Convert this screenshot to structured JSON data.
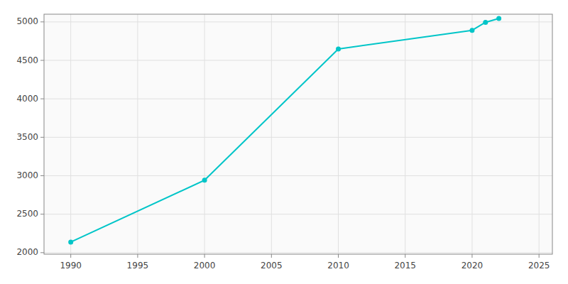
{
  "chart_data": {
    "type": "line",
    "x": [
      1990,
      2000,
      2010,
      2020,
      2021,
      2022
    ],
    "values": [
      2138,
      2942,
      4648,
      4891,
      4994,
      5044
    ],
    "color": "#00c5c8",
    "marker": "circle",
    "xlim": [
      1988,
      2026
    ],
    "ylim": [
      1980,
      5100
    ],
    "xticks": [
      1990,
      1995,
      2000,
      2005,
      2010,
      2015,
      2020,
      2025
    ],
    "yticks": [
      2000,
      2500,
      3000,
      3500,
      4000,
      4500,
      5000
    ],
    "grid": true
  }
}
